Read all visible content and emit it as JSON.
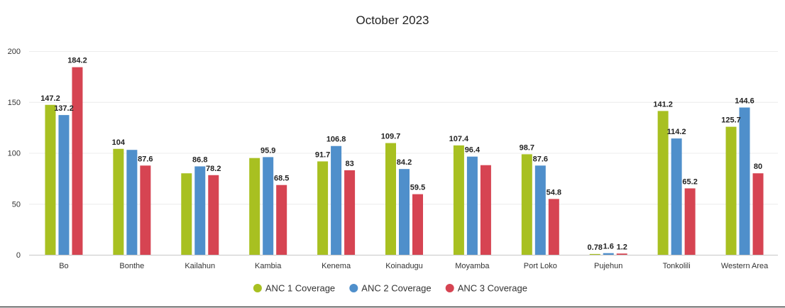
{
  "chart_data": {
    "type": "bar",
    "title": "October 2023",
    "xlabel": "",
    "ylabel": "",
    "ylim": [
      0,
      200
    ],
    "yticks": [
      0,
      50,
      100,
      150,
      200
    ],
    "grid": true,
    "legend_position": "bottom",
    "categories": [
      "Bo",
      "Bonthe",
      "Kailahun",
      "Kambia",
      "Kenema",
      "Koinadugu",
      "Moyamba",
      "Port Loko",
      "Pujehun",
      "Tonkolili",
      "Western Area"
    ],
    "series": [
      {
        "name": "ANC 1 Coverage",
        "color": "#a8c021",
        "values": [
          147.2,
          104,
          80,
          95,
          91.7,
          109.7,
          107.4,
          98.7,
          0.78,
          141.2,
          125.7
        ],
        "labels": [
          "147.2",
          "104",
          "",
          "",
          "91.7",
          "109.7",
          "107.4",
          "98.7",
          "0.78",
          "141.2",
          "125.7"
        ]
      },
      {
        "name": "ANC 2 Coverage",
        "color": "#4f8fcb",
        "values": [
          137.2,
          103,
          86.8,
          95.9,
          106.8,
          84.2,
          96.4,
          87.6,
          1.6,
          114.2,
          144.6
        ],
        "labels": [
          "137.2",
          "",
          "86.8",
          "95.9",
          "106.8",
          "84.2",
          "96.4",
          "87.6",
          "1.6",
          "114.2",
          "144.6"
        ]
      },
      {
        "name": "ANC 3 Coverage",
        "color": "#d64452",
        "values": [
          184.2,
          87.6,
          78.2,
          68.5,
          83,
          59.5,
          88,
          54.8,
          1.2,
          65.2,
          80
        ],
        "labels": [
          "184.2",
          "87.6",
          "78.2",
          "68.5",
          "83",
          "59.5",
          "",
          "54.8",
          "1.2",
          "65.2",
          "80"
        ]
      }
    ]
  }
}
